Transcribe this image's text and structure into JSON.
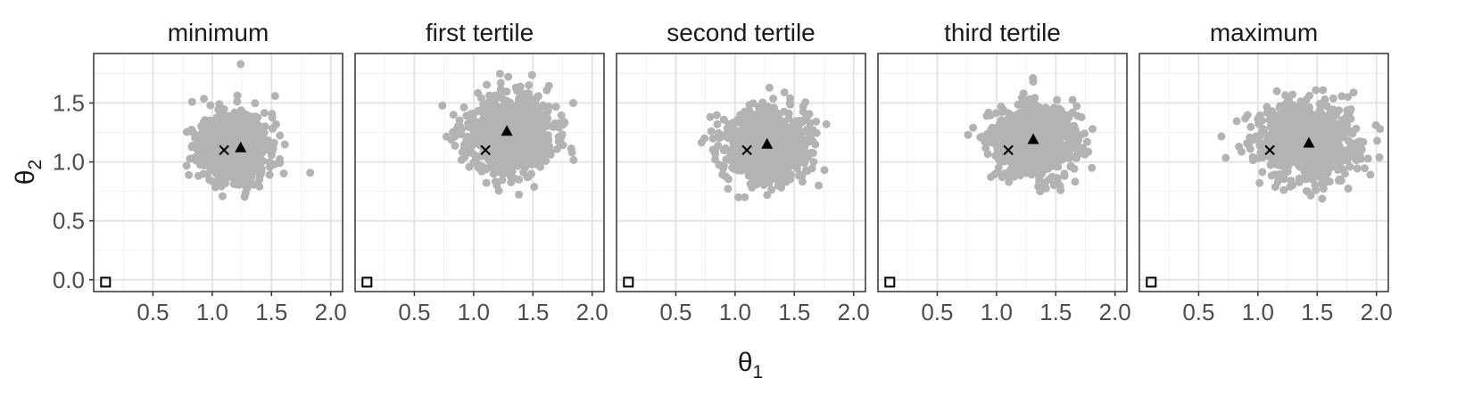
{
  "chart_data": {
    "type": "scatter",
    "facets": [
      {
        "title": "minimum",
        "cloud": {
          "center": [
            1.18,
            1.13
          ],
          "sd": [
            0.14,
            0.14
          ],
          "n": 900,
          "seed": 11,
          "outliers": [
            [
              1.24,
              1.83
            ],
            [
              0.83,
              1.51
            ],
            [
              1.53,
              1.56
            ]
          ]
        },
        "truth": [
          1.1,
          1.1
        ],
        "estimate": [
          1.24,
          1.12
        ],
        "start": [
          0.1,
          -0.02
        ]
      },
      {
        "title": "first tertile",
        "cloud": {
          "center": [
            1.3,
            1.23
          ],
          "sd": [
            0.18,
            0.16
          ],
          "n": 900,
          "seed": 23,
          "outliers": [
            [
              1.83,
              1.08
            ],
            [
              0.83,
              1.4
            ],
            [
              1.84,
              1.5
            ]
          ]
        },
        "truth": [
          1.1,
          1.1
        ],
        "estimate": [
          1.28,
          1.26
        ],
        "start": [
          0.1,
          -0.02
        ]
      },
      {
        "title": "second tertile",
        "cloud": {
          "center": [
            1.27,
            1.14
          ],
          "sd": [
            0.17,
            0.15
          ],
          "n": 900,
          "seed": 37,
          "outliers": [
            [
              1.29,
              1.63
            ],
            [
              1.77,
              1.32
            ],
            [
              0.8,
              1.26
            ]
          ]
        },
        "truth": [
          1.1,
          1.1
        ],
        "estimate": [
          1.27,
          1.15
        ],
        "start": [
          0.1,
          -0.02
        ]
      },
      {
        "title": "third tertile",
        "cloud": {
          "center": [
            1.32,
            1.18
          ],
          "sd": [
            0.17,
            0.15
          ],
          "n": 900,
          "seed": 41,
          "outliers": [
            [
              1.81,
              1.28
            ],
            [
              0.76,
              1.23
            ],
            [
              1.31,
              1.68
            ]
          ]
        },
        "truth": [
          1.1,
          1.1
        ],
        "estimate": [
          1.31,
          1.19
        ],
        "start": [
          0.1,
          -0.02
        ]
      },
      {
        "title": "maximum",
        "cloud": {
          "center": [
            1.42,
            1.17
          ],
          "sd": [
            0.21,
            0.16
          ],
          "n": 900,
          "seed": 53,
          "outliers": [
            [
              2.03,
              1.28
            ],
            [
              0.84,
              1.13
            ],
            [
              1.16,
              1.6
            ]
          ]
        },
        "truth": [
          1.1,
          1.1
        ],
        "estimate": [
          1.43,
          1.16
        ],
        "start": [
          0.1,
          -0.02
        ]
      }
    ],
    "x_ticks": [
      0.5,
      1.0,
      1.5,
      2.0
    ],
    "x_tick_labels": [
      "0.5",
      "1.0",
      "1.5",
      "2.0"
    ],
    "y_ticks": [
      0.0,
      0.5,
      1.0,
      1.5
    ],
    "y_tick_labels": [
      "0.0",
      "0.5",
      "1.0",
      "1.5"
    ],
    "xlim": [
      0.0,
      2.1
    ],
    "ylim": [
      -0.1,
      1.92
    ],
    "xlabel_base": "θ",
    "xlabel_sub": "1",
    "ylabel_base": "θ",
    "ylabel_sub": "2",
    "grid": true,
    "colors": {
      "points": "#b3b3b3",
      "markers": "#000000",
      "panel_border": "#333333",
      "grid_major": "#e5e5e5",
      "grid_minor": "#f2f2f2"
    }
  }
}
